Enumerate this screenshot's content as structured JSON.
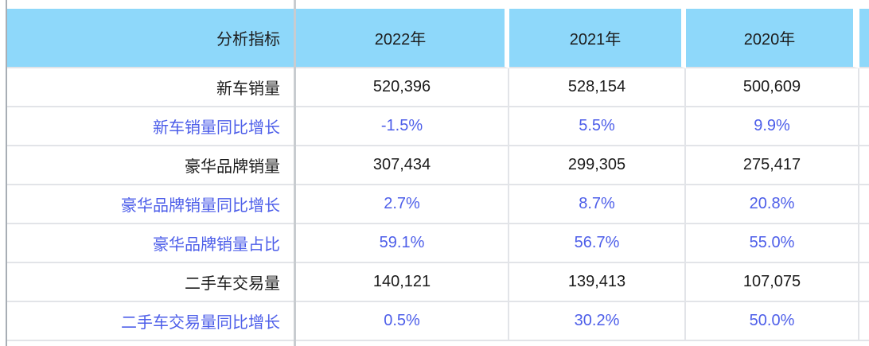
{
  "colors": {
    "header_bg": "#8ED8FA",
    "blue_text": "#4D5EE9",
    "black_text": "#1C1C1C",
    "grid_light": "#E2E4E8",
    "grid_dark": "#C8CCD0",
    "left_border": "#A8AEB5"
  },
  "table": {
    "indicator_header": "分析指标",
    "year_headers": [
      "2022年",
      "2021年",
      "2020年"
    ],
    "rows": [
      {
        "label": "新车销量",
        "values": [
          "520,396",
          "528,154",
          "500,609"
        ],
        "text_color": "black"
      },
      {
        "label": "新车销量同比增长",
        "values": [
          "-1.5%",
          "5.5%",
          "9.9%"
        ],
        "text_color": "blue"
      },
      {
        "label": "豪华品牌销量",
        "values": [
          "307,434",
          "299,305",
          "275,417"
        ],
        "text_color": "black"
      },
      {
        "label": "豪华品牌销量同比增长",
        "values": [
          "2.7%",
          "8.7%",
          "20.8%"
        ],
        "text_color": "blue"
      },
      {
        "label": "豪华品牌销量占比",
        "values": [
          "59.1%",
          "56.7%",
          "55.0%"
        ],
        "text_color": "blue"
      },
      {
        "label": "二手车交易量",
        "values": [
          "140,121",
          "139,413",
          "107,075"
        ],
        "text_color": "black"
      },
      {
        "label": "二手车交易量同比增长",
        "values": [
          "0.5%",
          "30.2%",
          "50.0%"
        ],
        "text_color": "blue"
      }
    ]
  },
  "chart_data": {
    "type": "table",
    "title": "",
    "columns": [
      "分析指标",
      "2022年",
      "2021年",
      "2020年"
    ],
    "rows": [
      [
        "新车销量",
        "520,396",
        "528,154",
        "500,609"
      ],
      [
        "新车销量同比增长",
        "-1.5%",
        "5.5%",
        "9.9%"
      ],
      [
        "豪华品牌销量",
        "307,434",
        "299,305",
        "275,417"
      ],
      [
        "豪华品牌销量同比增长",
        "2.7%",
        "8.7%",
        "20.8%"
      ],
      [
        "豪华品牌销量占比",
        "59.1%",
        "56.7%",
        "55.0%"
      ],
      [
        "二手车交易量",
        "140,121",
        "139,413",
        "107,075"
      ],
      [
        "二手车交易量同比增长",
        "0.5%",
        "30.2%",
        "50.0%"
      ]
    ],
    "notes": "Growth-rate rows rendered in blue; absolute-volume rows in black. Header row has light sky-blue background."
  }
}
